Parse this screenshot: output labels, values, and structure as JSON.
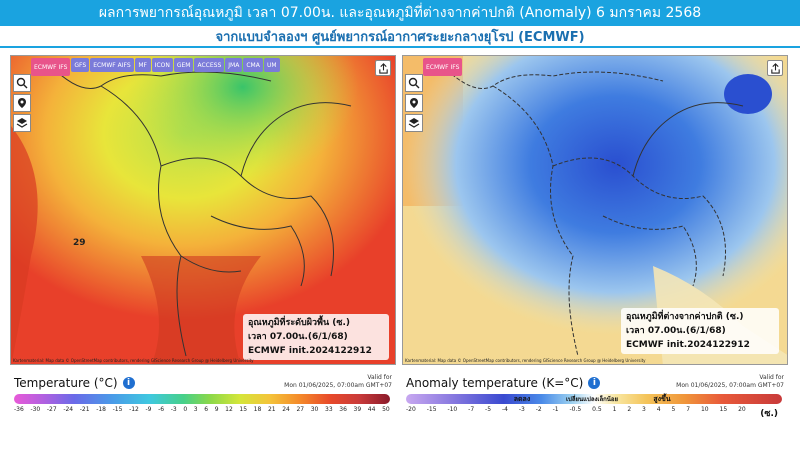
{
  "header": {
    "title": "ผลการพยากรณ์อุณหภูมิ เวลา 07.00น. และอุณหภูมิที่ต่างจากค่าปกติ (Anomaly) 6 มกราคม 2568",
    "subtitle": "จากแบบจำลองฯ ศูนย์พยากรณ์อากาศระยะกลางยุโรป (ECMWF)"
  },
  "model_tabs": [
    "ECMWF IFS",
    "GFS",
    "ECMWF AIFS",
    "MF",
    "ICON",
    "GEM",
    "ACCESS",
    "JMA",
    "CMA",
    "UM"
  ],
  "left_panel": {
    "label_line1": "อุณหภูมิที่ระดับผิวพื้น (ซ.)",
    "label_line2": "เวลา 07.00น.(6/1/68)",
    "label_line3": "ECMWF init.2024122912",
    "map_value": "29",
    "attribution": "Kartenmaterial: Map data © OpenStreetMap contributors, rendering GIScience Research Group @ Heidelberg University"
  },
  "right_panel": {
    "label_line1": "อุณหภูมิที่ต่างจากค่าปกติ (ซ.)",
    "label_line2": "เวลา 07.00น.(6/1/68)",
    "label_line3": "ECMWF init.2024122912",
    "attribution": "Kartenmaterial: Map data © OpenStreetMap contributors, rendering GIScience Research Group @ Heidelberg University"
  },
  "legend_left": {
    "title": "Temperature (°C)",
    "valid_line1": "Valid for",
    "valid_line2": "Mon 01/06/2025, 07:00am GMT+07",
    "ticks": [
      "-36",
      "-30",
      "-27",
      "-24",
      "-21",
      "-18",
      "-15",
      "-12",
      "-9",
      "-6",
      "-3",
      "0",
      "3",
      "6",
      "9",
      "12",
      "15",
      "18",
      "21",
      "24",
      "27",
      "30",
      "33",
      "36",
      "39",
      "44",
      "50"
    ]
  },
  "legend_right": {
    "title": "Anomaly temperature (K=°C)",
    "valid_line1": "Valid for",
    "valid_line2": "Mon 01/06/2025, 07:00am GMT+07",
    "ticks": [
      "-20",
      "-15",
      "-10",
      "-7",
      "-5",
      "-4",
      "-3",
      "-2",
      "-1",
      "-0.5",
      "0.5",
      "1",
      "2",
      "3",
      "4",
      "5",
      "7",
      "10",
      "15",
      "20"
    ],
    "cold_label": "ลดลง",
    "neutral_label": "เปลี่ยนแปลงเล็กน้อย",
    "warm_label": "สูงขึ้น",
    "unit": "(ซ.)"
  },
  "colors": {
    "title_bar": "#1aa3e0",
    "subtitle_text": "#1a6fb0"
  }
}
